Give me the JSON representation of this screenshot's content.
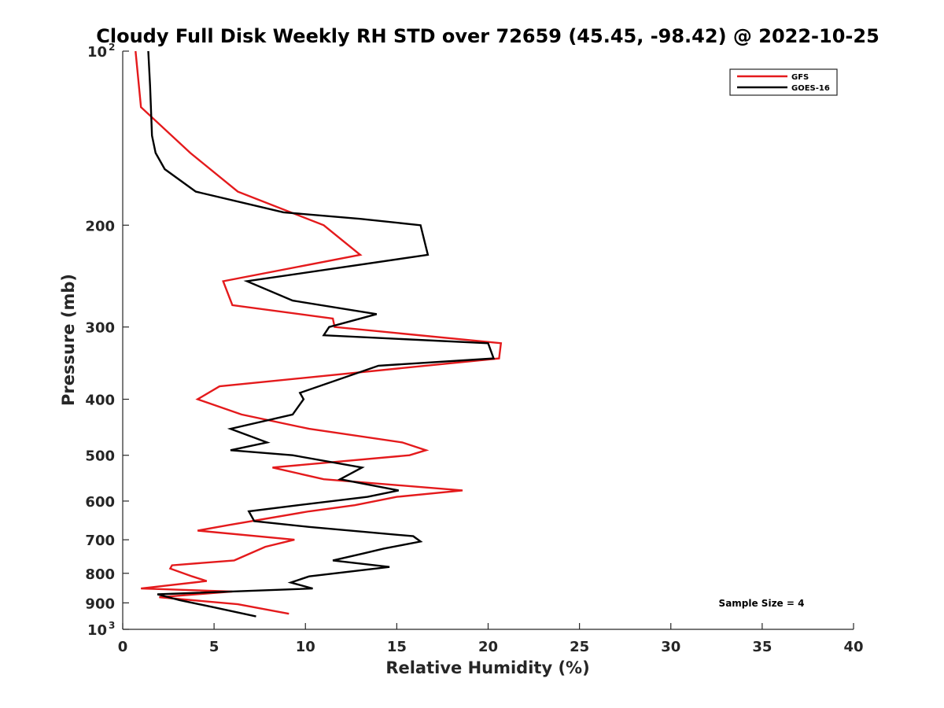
{
  "chart_data": {
    "type": "line",
    "title": "Cloudy Full Disk Weekly RH STD over 72659 (45.45, -98.42) @ 2022-10-25",
    "xlabel": "Relative Humidity (%)",
    "ylabel": "Pressure (mb)",
    "xlim": [
      0,
      40
    ],
    "ylim": [
      100,
      1000
    ],
    "y_scale": "log",
    "y_reversed": true,
    "x_ticks": [
      "0",
      "5",
      "10",
      "15",
      "20",
      "25",
      "30",
      "35",
      "40"
    ],
    "y_ticks": [
      {
        "value": 100,
        "label": "10",
        "sup": "2"
      },
      {
        "value": 200,
        "label": "200"
      },
      {
        "value": 300,
        "label": "300"
      },
      {
        "value": 400,
        "label": "400"
      },
      {
        "value": 500,
        "label": "500"
      },
      {
        "value": 600,
        "label": "600"
      },
      {
        "value": 700,
        "label": "700"
      },
      {
        "value": 800,
        "label": "800"
      },
      {
        "value": 900,
        "label": "900"
      },
      {
        "value": 1000,
        "label": "10",
        "sup": "3"
      }
    ],
    "grid": false,
    "legend_position": "top-right",
    "annotation": "Sample Size = 4",
    "series": [
      {
        "name": "GFS",
        "color": "#e41a1c",
        "points": [
          [
            0.7,
            100
          ],
          [
            1.0,
            125
          ],
          [
            3.7,
            150
          ],
          [
            6.3,
            175
          ],
          [
            11.0,
            200
          ],
          [
            13.0,
            225
          ],
          [
            5.5,
            250
          ],
          [
            6.0,
            275
          ],
          [
            11.5,
            290
          ],
          [
            11.6,
            300
          ],
          [
            20.7,
            320
          ],
          [
            20.6,
            340
          ],
          [
            5.3,
            380
          ],
          [
            4.1,
            400
          ],
          [
            6.5,
            425
          ],
          [
            10.2,
            450
          ],
          [
            15.3,
            475
          ],
          [
            16.6,
            490
          ],
          [
            15.7,
            500
          ],
          [
            8.2,
            525
          ],
          [
            11.0,
            550
          ],
          [
            18.6,
            575
          ],
          [
            15.0,
            590
          ],
          [
            12.7,
            610
          ],
          [
            10.2,
            625
          ],
          [
            5.8,
            660
          ],
          [
            4.1,
            675
          ],
          [
            9.4,
            700
          ],
          [
            7.8,
            720
          ],
          [
            6.1,
            760
          ],
          [
            2.7,
            775
          ],
          [
            2.6,
            785
          ],
          [
            3.8,
            810
          ],
          [
            4.6,
            825
          ],
          [
            1.0,
            850
          ],
          [
            6.0,
            860
          ],
          [
            2.0,
            880
          ],
          [
            6.3,
            905
          ],
          [
            9.1,
            940
          ]
        ]
      },
      {
        "name": "GOES-16",
        "color": "#000000",
        "points": [
          [
            1.4,
            100
          ],
          [
            1.5,
            115
          ],
          [
            1.6,
            140
          ],
          [
            1.8,
            150
          ],
          [
            2.3,
            160
          ],
          [
            4.0,
            175
          ],
          [
            8.8,
            190
          ],
          [
            13.0,
            195
          ],
          [
            16.3,
            200
          ],
          [
            16.7,
            225
          ],
          [
            6.8,
            250
          ],
          [
            9.3,
            270
          ],
          [
            13.9,
            285
          ],
          [
            11.3,
            300
          ],
          [
            11.0,
            310
          ],
          [
            20.0,
            320
          ],
          [
            20.3,
            340
          ],
          [
            14.0,
            350
          ],
          [
            9.7,
            390
          ],
          [
            9.9,
            400
          ],
          [
            9.3,
            425
          ],
          [
            5.9,
            450
          ],
          [
            7.9,
            475
          ],
          [
            5.9,
            490
          ],
          [
            9.3,
            500
          ],
          [
            13.1,
            525
          ],
          [
            11.9,
            550
          ],
          [
            15.1,
            575
          ],
          [
            13.4,
            590
          ],
          [
            9.6,
            610
          ],
          [
            6.9,
            625
          ],
          [
            7.2,
            650
          ],
          [
            10.2,
            665
          ],
          [
            15.9,
            690
          ],
          [
            16.3,
            705
          ],
          [
            14.3,
            725
          ],
          [
            13.1,
            740
          ],
          [
            11.5,
            760
          ],
          [
            14.6,
            780
          ],
          [
            10.2,
            810
          ],
          [
            9.2,
            830
          ],
          [
            10.4,
            850
          ],
          [
            1.9,
            870
          ],
          [
            3.1,
            890
          ],
          [
            4.9,
            915
          ],
          [
            7.3,
            950
          ]
        ]
      }
    ]
  }
}
